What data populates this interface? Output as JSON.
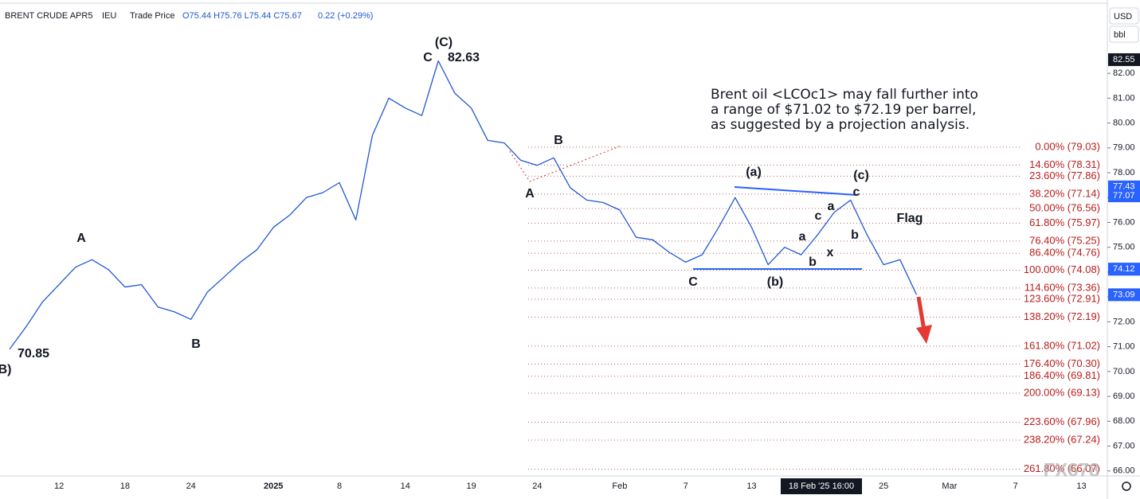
{
  "chart_data": {
    "type": "line",
    "header": {
      "symbol": "BRENT CRUDE APR5",
      "exchange": "IEU",
      "price_type": "Trade Price",
      "ohlc": "O75.44 H75.76 L75.44 C75.67",
      "change": "0.22 (+0.29%)"
    },
    "currency": "USD",
    "unit": "bbl",
    "categories": [
      null,
      null,
      null,
      "12",
      null,
      null,
      null,
      "18",
      null,
      null,
      null,
      "24",
      null,
      null,
      null,
      null,
      "2025",
      null,
      null,
      null,
      "8",
      null,
      null,
      null,
      "14",
      null,
      null,
      null,
      "19",
      null,
      null,
      null,
      "24",
      null,
      null,
      null,
      null,
      "Feb",
      null,
      null,
      null,
      "7",
      null,
      null,
      null,
      "13",
      null,
      null,
      null,
      null,
      null,
      null,
      null,
      "25",
      null,
      null,
      null,
      "Mar",
      null,
      null,
      null,
      "7",
      null,
      null,
      null,
      "13",
      null
    ],
    "series": [
      {
        "name": "Brent",
        "color": "#2157d4",
        "values": [
          70.9,
          71.8,
          72.8,
          73.5,
          74.2,
          74.5,
          74.1,
          73.4,
          73.5,
          72.6,
          72.4,
          72.1,
          73.2,
          73.8,
          74.4,
          74.9,
          75.8,
          76.3,
          77.0,
          77.2,
          77.6,
          76.1,
          79.5,
          81.0,
          80.6,
          80.3,
          82.5,
          81.2,
          80.6,
          79.3,
          79.2,
          78.5,
          78.3,
          78.6,
          77.4,
          76.9,
          76.8,
          76.5,
          75.4,
          75.3,
          74.8,
          74.4,
          74.7,
          75.8,
          77.0,
          75.8,
          74.3,
          75.0,
          74.7,
          75.5,
          76.4,
          76.9,
          75.5,
          74.3,
          74.5,
          73.09,
          null,
          null,
          null,
          null,
          null,
          null,
          null,
          null,
          null,
          null,
          null
        ]
      }
    ],
    "ylim": [
      65.8,
      84.95
    ],
    "yticks": [
      {
        "value": 66,
        "label": "66.00"
      },
      {
        "value": 67,
        "label": "67.00"
      },
      {
        "value": 68,
        "label": "68.00"
      },
      {
        "value": 69,
        "label": "69.00"
      },
      {
        "value": 70,
        "label": "70.00"
      },
      {
        "value": 71,
        "label": "71.00"
      },
      {
        "value": 72,
        "label": "72.00"
      },
      {
        "value": 73,
        "label": "73.00"
      },
      {
        "value": 74,
        "label": "74.00"
      },
      {
        "value": 75,
        "label": "75.00"
      },
      {
        "value": 76,
        "label": "76.00"
      },
      {
        "value": 77,
        "label": "77.00"
      },
      {
        "value": 78,
        "label": "78.00"
      },
      {
        "value": 79,
        "label": "79.00"
      },
      {
        "value": 80,
        "label": "80.00"
      },
      {
        "value": 81,
        "label": "81.00"
      },
      {
        "value": 82,
        "label": "82.00"
      }
    ],
    "price_markers": [
      {
        "value": 82.55,
        "color": "#131722"
      },
      {
        "value": 77.43,
        "color": "#2962ff"
      },
      {
        "value": 77.07,
        "color": "#2962ff"
      },
      {
        "value": 74.12,
        "color": "#2962ff"
      },
      {
        "value": 74.12,
        "color": "#2962ff"
      },
      {
        "value": 73.09,
        "color": "#2962ff"
      }
    ],
    "fib_levels": [
      {
        "value": 79.03,
        "label": "0.00% (79.03)"
      },
      {
        "value": 78.31,
        "label": "14.60% (78.31)"
      },
      {
        "value": 77.86,
        "label": "23.60% (77.86)"
      },
      {
        "value": 77.14,
        "label": "38.20% (77.14)"
      },
      {
        "value": 76.56,
        "label": "50.00% (76.56)"
      },
      {
        "value": 75.97,
        "label": "61.80% (75.97)"
      },
      {
        "value": 75.25,
        "label": "76.40% (75.25)"
      },
      {
        "value": 74.76,
        "label": "86.40% (74.76)"
      },
      {
        "value": 74.08,
        "label": "100.00% (74.08)"
      },
      {
        "value": 73.36,
        "label": "114.60% (73.36)"
      },
      {
        "value": 72.91,
        "label": "123.60% (72.91)"
      },
      {
        "value": 72.19,
        "label": "138.20% (72.19)"
      },
      {
        "value": 71.02,
        "label": "161.80% (71.02)"
      },
      {
        "value": 70.3,
        "label": "176.40% (70.30)"
      },
      {
        "value": 69.81,
        "label": "186.40% (69.81)"
      },
      {
        "value": 69.13,
        "label": "200.00% (69.13)"
      },
      {
        "value": 67.96,
        "label": "223.60% (67.96)"
      },
      {
        "value": 67.24,
        "label": "238.20% (67.24)"
      },
      {
        "value": 66.07,
        "label": "261.80% (66.07)"
      }
    ],
    "note": [
      "Brent oil <LCOc1> may fall further into",
      "a range of $71.02 to $72.19 per barrel,",
      "as suggested by a projection analysis."
    ],
    "waves": [
      "(C)",
      "C",
      "82.63",
      "B",
      "A",
      "A",
      "B",
      "70.85",
      "B)",
      "(a)",
      "(b)",
      "(c)",
      "c",
      "C",
      "a",
      "c",
      "a",
      "b",
      "x",
      "b",
      "Flag"
    ],
    "crosshair": "18 Feb '25  16:00",
    "watermark": "FX678"
  }
}
